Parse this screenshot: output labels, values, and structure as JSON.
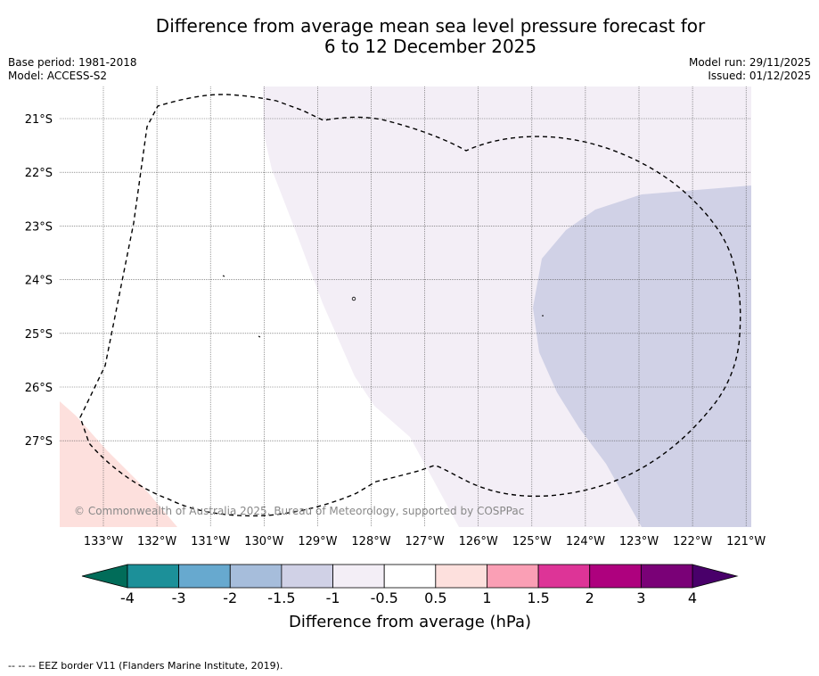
{
  "title": {
    "line1": "Difference from average mean sea level pressure forecast for",
    "line2": "6 to 12 December 2025"
  },
  "meta": {
    "base_period": "Base period: 1981-2018",
    "model": "Model: ACCESS-S2",
    "model_run": "Model run: 29/11/2025",
    "issued": "Issued: 01/12/2025"
  },
  "map": {
    "lat_labels": [
      "21°S",
      "22°S",
      "23°S",
      "24°S",
      "25°S",
      "26°S",
      "27°S"
    ],
    "lon_labels": [
      "133°W",
      "132°W",
      "131°W",
      "130°W",
      "129°W",
      "128°W",
      "127°W",
      "126°W",
      "125°W",
      "124°W",
      "123°W",
      "122°W",
      "121°W"
    ],
    "copyright": "© Commonwealth of Australia 2025, Bureau of Meteorology, supported by COSPPac",
    "colors": {
      "light_lilac": "#f3eef6",
      "lavender": "#d0d1e6",
      "light_pink": "#fde0dd"
    }
  },
  "colorbar": {
    "ticks": [
      "-4",
      "-3",
      "-2",
      "-1.5",
      "-1",
      "-0.5",
      "0.5",
      "1",
      "1.5",
      "2",
      "3",
      "4"
    ],
    "label": "Difference from average (hPa)",
    "under_color": "#016c59",
    "over_color": "#49006a",
    "colors": [
      "#1c9099",
      "#67a9cf",
      "#a6bddb",
      "#d0d1e6",
      "#f3eef6",
      "#ffffff",
      "#fde0dd",
      "#fa9fb5",
      "#dd3497",
      "#ae017e",
      "#7a0177"
    ]
  },
  "footnote": "-- -- -- EEZ border V11 (Flanders Marine Institute, 2019)."
}
